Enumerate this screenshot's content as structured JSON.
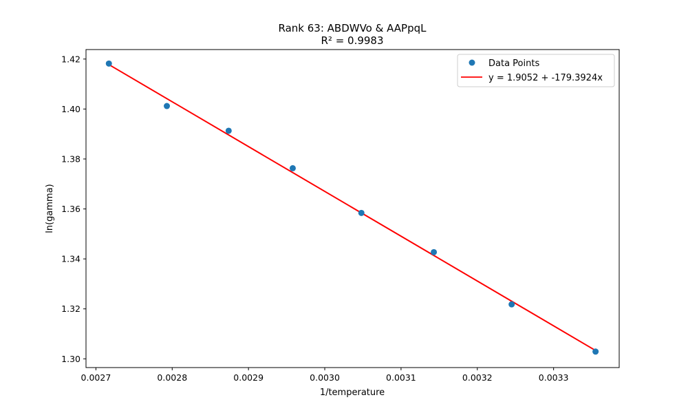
{
  "chart_data": {
    "type": "scatter",
    "title": "Rank 63: ABDWVo & AAPpqL",
    "subtitle": "R² = 0.9983",
    "xlabel": "1/temperature",
    "ylabel": "ln(gamma)",
    "xlim": [
      0.002687,
      0.003386
    ],
    "ylim": [
      1.2965,
      1.4238
    ],
    "x_ticks": [
      0.0027,
      0.0028,
      0.0029,
      0.003,
      0.0031,
      0.0032,
      0.0033
    ],
    "x_tick_labels": [
      "0.0027",
      "0.0028",
      "0.0029",
      "0.0030",
      "0.0031",
      "0.0032",
      "0.0033"
    ],
    "y_ticks": [
      1.3,
      1.32,
      1.34,
      1.36,
      1.38,
      1.4,
      1.42
    ],
    "y_tick_labels": [
      "1.30",
      "1.32",
      "1.34",
      "1.36",
      "1.38",
      "1.40",
      "1.42"
    ],
    "grid": false,
    "legend_position": "top-right",
    "series": [
      {
        "name": "Data Points",
        "kind": "scatter",
        "color": "#1f77b4",
        "points": [
          {
            "x": 0.002717,
            "y": 1.4182
          },
          {
            "x": 0.002793,
            "y": 1.4012
          },
          {
            "x": 0.002874,
            "y": 1.3913
          },
          {
            "x": 0.002958,
            "y": 1.3763
          },
          {
            "x": 0.003048,
            "y": 1.3584
          },
          {
            "x": 0.003143,
            "y": 1.3427
          },
          {
            "x": 0.003245,
            "y": 1.3218
          },
          {
            "x": 0.003355,
            "y": 1.3029
          }
        ]
      },
      {
        "name": "y = 1.9052 + -179.3924x",
        "kind": "line",
        "color": "#ff0000",
        "intercept": 1.9052,
        "slope": -179.3924,
        "x_range": [
          0.002717,
          0.003355
        ]
      }
    ]
  }
}
